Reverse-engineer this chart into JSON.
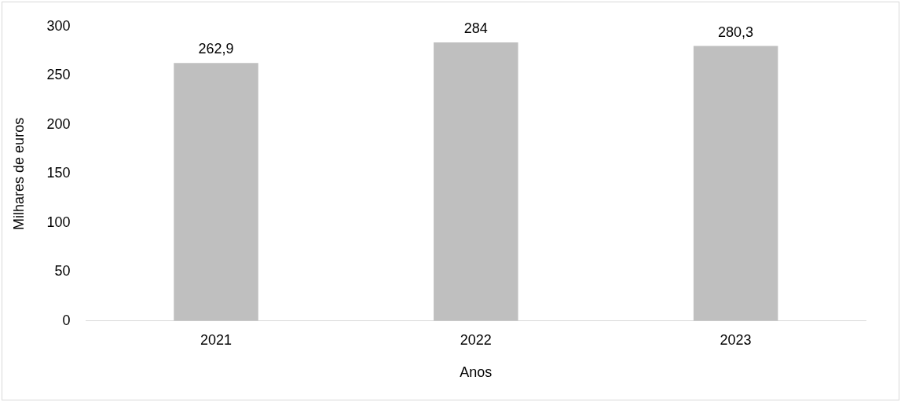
{
  "chart_data": {
    "type": "bar",
    "xlabel": "Anos",
    "ylabel": "Milhares de euros",
    "categories": [
      "2021",
      "2022",
      "2023"
    ],
    "values": [
      262.9,
      284,
      280.3
    ],
    "value_labels": [
      "262,9",
      "284",
      "280,3"
    ],
    "color": "#bfbfbf",
    "ylim": [
      0,
      300
    ],
    "yticks": [
      0,
      50,
      100,
      150,
      200,
      250,
      300
    ],
    "grid": false,
    "legend": false
  }
}
